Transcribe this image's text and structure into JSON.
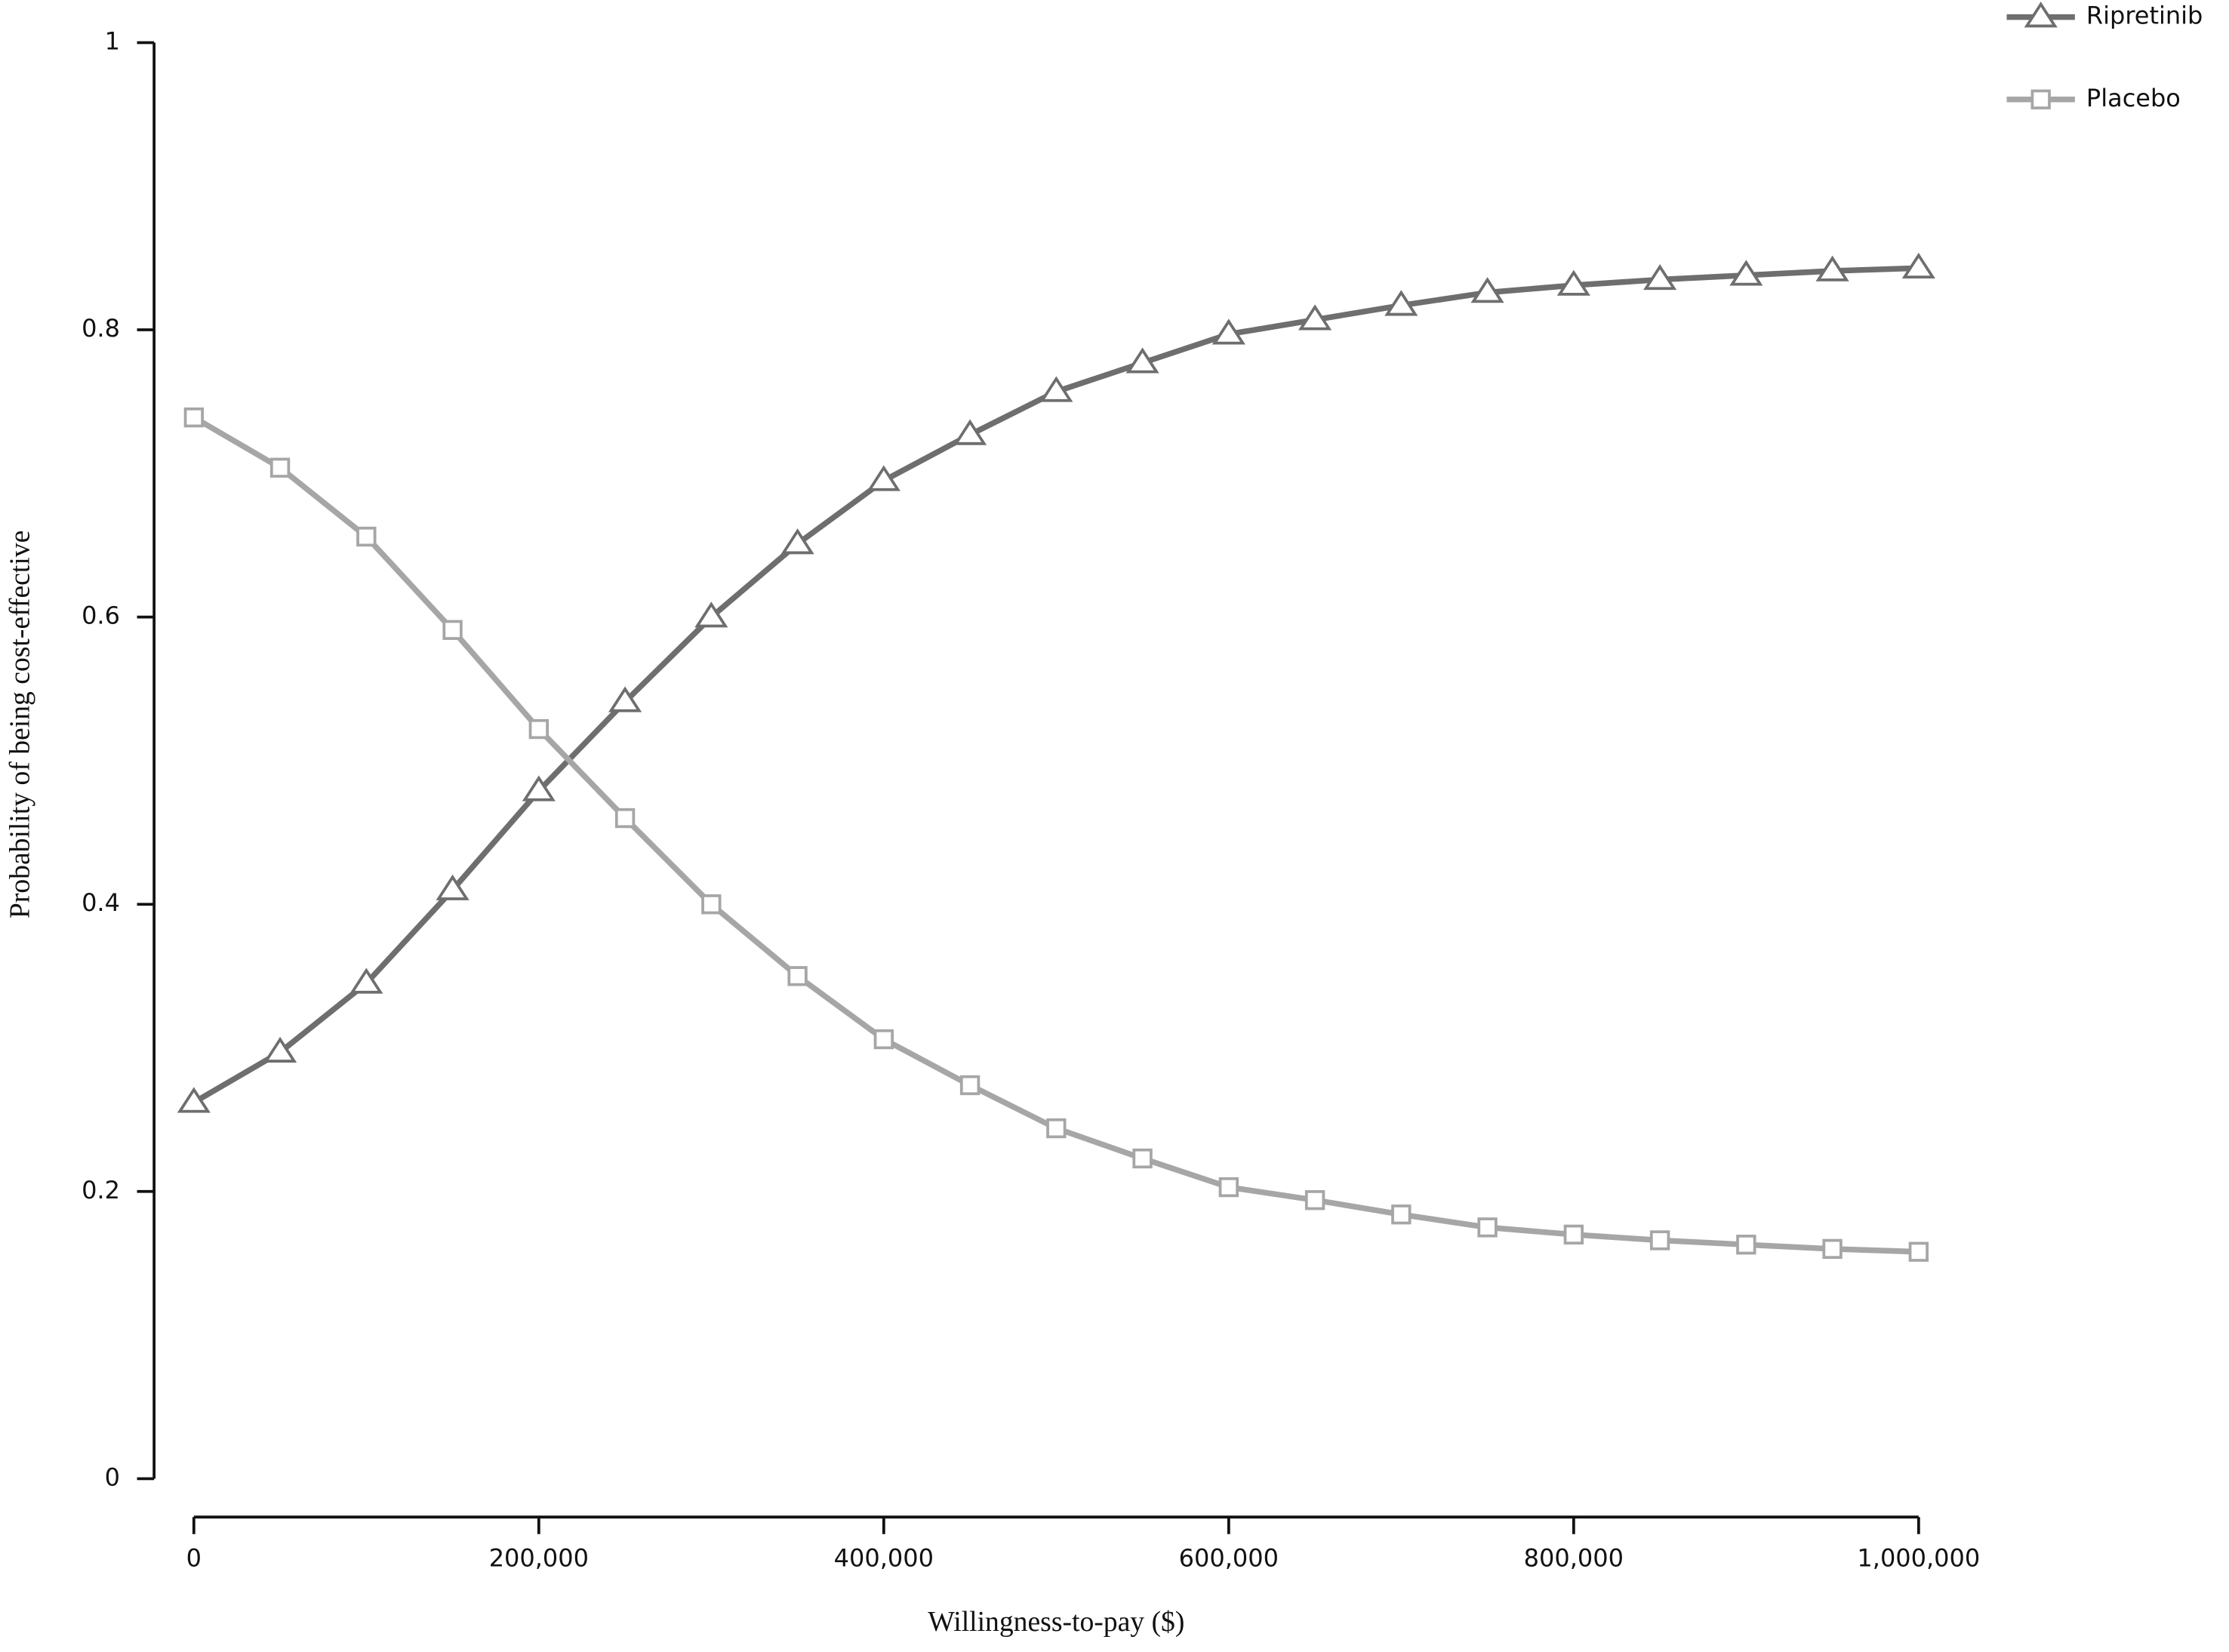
{
  "chart_data": {
    "type": "line",
    "xlabel": "Willingness-to-pay ($)",
    "ylabel": "Probability of being cost-effective",
    "x": [
      0,
      50000,
      100000,
      150000,
      200000,
      250000,
      300000,
      350000,
      400000,
      450000,
      500000,
      550000,
      600000,
      650000,
      700000,
      750000,
      800000,
      850000,
      900000,
      950000,
      1000000
    ],
    "series": [
      {
        "name": "Ripretinib",
        "color": "#6e6e6e",
        "marker": "triangle",
        "values": [
          0.262,
          0.297,
          0.345,
          0.41,
          0.479,
          0.541,
          0.6,
          0.651,
          0.695,
          0.727,
          0.757,
          0.777,
          0.797,
          0.807,
          0.817,
          0.826,
          0.831,
          0.835,
          0.838,
          0.841,
          0.843
        ]
      },
      {
        "name": "Placebo",
        "color": "#a6a6a6",
        "marker": "square",
        "values": [
          0.739,
          0.704,
          0.656,
          0.591,
          0.522,
          0.46,
          0.4,
          0.35,
          0.306,
          0.274,
          0.244,
          0.223,
          0.203,
          0.194,
          0.184,
          0.175,
          0.17,
          0.166,
          0.163,
          0.16,
          0.158
        ]
      }
    ],
    "xlim": [
      0,
      1000000
    ],
    "xticks": [
      {
        "value": 0,
        "label": "0"
      },
      {
        "value": 200000,
        "label": "200,000"
      },
      {
        "value": 400000,
        "label": "400,000"
      },
      {
        "value": 600000,
        "label": "600,000"
      },
      {
        "value": 800000,
        "label": "800,000"
      },
      {
        "value": 1000000,
        "label": "1,000,000"
      }
    ],
    "ylim": [
      0,
      1
    ],
    "yticks": [
      0,
      0.2,
      0.4,
      0.6,
      0.8,
      1
    ],
    "grid": false,
    "legend": "top-right"
  }
}
